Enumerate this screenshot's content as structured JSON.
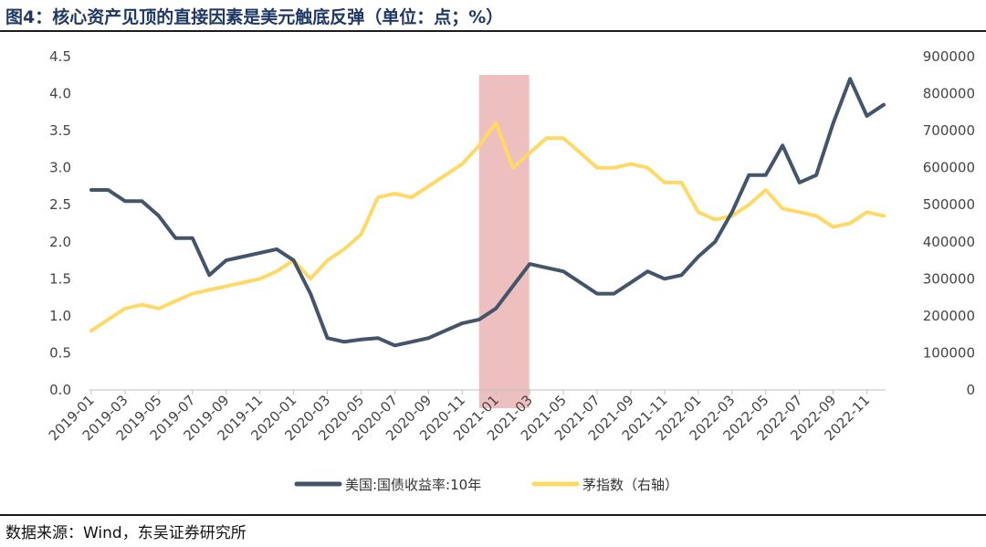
{
  "header": {
    "title": "图4：核心资产见顶的直接因素是美元触底反弹（单位：点；%）"
  },
  "footer": {
    "source": "数据来源：Wind，东吴证券研究所"
  },
  "colors": {
    "series1": "#44546a",
    "series2": "#ffd966",
    "highlight": "#e8a9aa"
  },
  "chart_data": {
    "type": "line",
    "title": "图4：核心资产见顶的直接因素是美元触底反弹（单位：点；%）",
    "x_tick_labels": [
      "2019-01",
      "2019-03",
      "2019-05",
      "2019-07",
      "2019-09",
      "2019-11",
      "2020-01",
      "2020-03",
      "2020-05",
      "2020-07",
      "2020-09",
      "2020-11",
      "2021-01",
      "2021-03",
      "2021-05",
      "2021-07",
      "2021-09",
      "2021-11",
      "2022-01",
      "2022-03",
      "2022-05",
      "2022-07",
      "2022-09",
      "2022-11"
    ],
    "y_left": {
      "min": 0,
      "max": 4.5,
      "ticks": [
        "0.0",
        "0.5",
        "1.0",
        "1.5",
        "2.0",
        "2.5",
        "3.0",
        "3.5",
        "4.0",
        "4.5"
      ]
    },
    "y_right": {
      "min": 0,
      "max": 900000,
      "ticks": [
        "0",
        "100000",
        "200000",
        "300000",
        "400000",
        "500000",
        "600000",
        "700000",
        "800000",
        "900000"
      ]
    },
    "highlight_band": {
      "start": "2020-12",
      "end": "2021-02",
      "note": "shaded region"
    },
    "series": [
      {
        "name": "美国:国债收益率:10年",
        "axis": "left",
        "x": [
          "2019-01",
          "2019-02",
          "2019-03",
          "2019-04",
          "2019-05",
          "2019-06",
          "2019-07",
          "2019-08",
          "2019-09",
          "2019-10",
          "2019-11",
          "2019-12",
          "2020-01",
          "2020-02",
          "2020-03",
          "2020-04",
          "2020-05",
          "2020-06",
          "2020-07",
          "2020-08",
          "2020-09",
          "2020-10",
          "2020-11",
          "2020-12",
          "2021-01",
          "2021-02",
          "2021-03",
          "2021-04",
          "2021-05",
          "2021-06",
          "2021-07",
          "2021-08",
          "2021-09",
          "2021-10",
          "2021-11",
          "2021-12",
          "2022-01",
          "2022-02",
          "2022-03",
          "2022-04",
          "2022-05",
          "2022-06",
          "2022-07",
          "2022-08",
          "2022-09",
          "2022-10",
          "2022-11",
          "2022-12"
        ],
        "values": [
          2.7,
          2.7,
          2.55,
          2.55,
          2.35,
          2.05,
          2.05,
          1.55,
          1.75,
          1.8,
          1.85,
          1.9,
          1.75,
          1.3,
          0.7,
          0.65,
          0.68,
          0.7,
          0.6,
          0.65,
          0.7,
          0.8,
          0.9,
          0.95,
          1.1,
          1.4,
          1.7,
          1.65,
          1.6,
          1.45,
          1.3,
          1.3,
          1.45,
          1.6,
          1.5,
          1.55,
          1.8,
          2.0,
          2.4,
          2.9,
          2.9,
          3.3,
          2.8,
          2.9,
          3.6,
          4.2,
          3.7,
          3.85
        ]
      },
      {
        "name": "茅指数（右轴）",
        "axis": "right",
        "x": [
          "2019-01",
          "2019-02",
          "2019-03",
          "2019-04",
          "2019-05",
          "2019-06",
          "2019-07",
          "2019-08",
          "2019-09",
          "2019-10",
          "2019-11",
          "2019-12",
          "2020-01",
          "2020-02",
          "2020-03",
          "2020-04",
          "2020-05",
          "2020-06",
          "2020-07",
          "2020-08",
          "2020-09",
          "2020-10",
          "2020-11",
          "2020-12",
          "2021-01",
          "2021-02",
          "2021-03",
          "2021-04",
          "2021-05",
          "2021-06",
          "2021-07",
          "2021-08",
          "2021-09",
          "2021-10",
          "2021-11",
          "2021-12",
          "2022-01",
          "2022-02",
          "2022-03",
          "2022-04",
          "2022-05",
          "2022-06",
          "2022-07",
          "2022-08",
          "2022-09",
          "2022-10",
          "2022-11",
          "2022-12"
        ],
        "values": [
          160000,
          190000,
          220000,
          230000,
          220000,
          240000,
          260000,
          270000,
          280000,
          290000,
          300000,
          320000,
          350000,
          300000,
          350000,
          380000,
          420000,
          520000,
          530000,
          520000,
          550000,
          580000,
          610000,
          660000,
          720000,
          600000,
          640000,
          680000,
          680000,
          640000,
          600000,
          600000,
          610000,
          600000,
          560000,
          560000,
          480000,
          460000,
          470000,
          500000,
          540000,
          490000,
          480000,
          470000,
          440000,
          450000,
          480000,
          470000
        ]
      }
    ],
    "legend": {
      "placement": "bottom-center",
      "entries": [
        "美国:国债收益率:10年",
        "茅指数（右轴）"
      ]
    }
  }
}
